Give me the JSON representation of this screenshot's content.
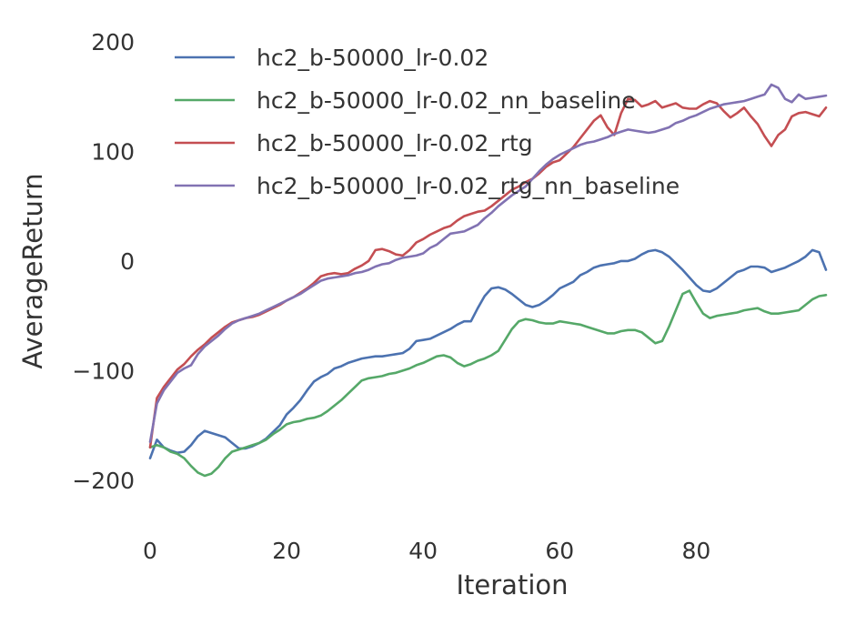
{
  "chart_data": {
    "type": "line",
    "title": "",
    "xlabel": "Iteration",
    "ylabel": "AverageReturn",
    "xlim": [
      0,
      99
    ],
    "ylim": [
      -240,
      210
    ],
    "xticks": [
      0,
      20,
      40,
      60,
      80
    ],
    "xtick_labels": [
      "0",
      "20",
      "40",
      "60",
      "80"
    ],
    "yticks": [
      200,
      100,
      0,
      -100,
      -200
    ],
    "ytick_labels": [
      "200",
      "100",
      "0",
      "−100",
      "−200"
    ],
    "grid": false,
    "legend_position": "upper-left",
    "x": [
      0,
      1,
      2,
      3,
      4,
      5,
      6,
      7,
      8,
      9,
      10,
      11,
      12,
      13,
      14,
      15,
      16,
      17,
      18,
      19,
      20,
      21,
      22,
      23,
      24,
      25,
      26,
      27,
      28,
      29,
      30,
      31,
      32,
      33,
      34,
      35,
      36,
      37,
      38,
      39,
      40,
      41,
      42,
      43,
      44,
      45,
      46,
      47,
      48,
      49,
      50,
      51,
      52,
      53,
      54,
      55,
      56,
      57,
      58,
      59,
      60,
      61,
      62,
      63,
      64,
      65,
      66,
      67,
      68,
      69,
      70,
      71,
      72,
      73,
      74,
      75,
      76,
      77,
      78,
      79,
      80,
      81,
      82,
      83,
      84,
      85,
      86,
      87,
      88,
      89,
      90,
      91,
      92,
      93,
      94,
      95,
      96,
      97,
      98,
      99
    ],
    "series": [
      {
        "name": "hc2_b-50000_lr-0.02",
        "color": "#4c72b0",
        "values": [
          -180,
          -163,
          -170,
          -173,
          -175,
          -174,
          -168,
          -160,
          -155,
          -157,
          -159,
          -161,
          -166,
          -171,
          -171,
          -169,
          -166,
          -162,
          -156,
          -150,
          -140,
          -134,
          -127,
          -118,
          -110,
          -106,
          -103,
          -98,
          -96,
          -93,
          -91,
          -89,
          -88,
          -87,
          -87,
          -86,
          -85,
          -84,
          -80,
          -73,
          -72,
          -71,
          -68,
          -65,
          -62,
          -58,
          -55,
          -55,
          -43,
          -32,
          -25,
          -24,
          -26,
          -30,
          -35,
          -40,
          -42,
          -40,
          -36,
          -31,
          -25,
          -22,
          -19,
          -13,
          -10,
          -6,
          -4,
          -3,
          -2,
          0,
          0,
          2,
          6,
          9,
          10,
          8,
          4,
          -2,
          -8,
          -15,
          -22,
          -27,
          -28,
          -25,
          -20,
          -15,
          -10,
          -8,
          -5,
          -5,
          -6,
          -10,
          -8,
          -6,
          -3,
          0,
          4,
          10,
          8,
          -8
        ]
      },
      {
        "name": "hc2_b-50000_lr-0.02_nn_baseline",
        "color": "#55a868",
        "values": [
          -170,
          -168,
          -170,
          -174,
          -176,
          -180,
          -187,
          -193,
          -196,
          -194,
          -188,
          -180,
          -174,
          -172,
          -170,
          -168,
          -166,
          -163,
          -158,
          -154,
          -149,
          -147,
          -146,
          -144,
          -143,
          -141,
          -137,
          -132,
          -127,
          -121,
          -115,
          -109,
          -107,
          -106,
          -105,
          -103,
          -102,
          -100,
          -98,
          -95,
          -93,
          -90,
          -87,
          -86,
          -88,
          -93,
          -96,
          -94,
          -91,
          -89,
          -86,
          -82,
          -72,
          -62,
          -55,
          -53,
          -54,
          -56,
          -57,
          -57,
          -55,
          -56,
          -57,
          -58,
          -60,
          -62,
          -64,
          -66,
          -66,
          -64,
          -63,
          -63,
          -65,
          -70,
          -75,
          -73,
          -60,
          -45,
          -30,
          -27,
          -38,
          -48,
          -52,
          -50,
          -49,
          -48,
          -47,
          -45,
          -44,
          -43,
          -46,
          -48,
          -48,
          -47,
          -46,
          -45,
          -40,
          -35,
          -32,
          -31
        ]
      },
      {
        "name": "hc2_b-50000_lr-0.02_rtg",
        "color": "#c44e52",
        "values": [
          -170,
          -125,
          -115,
          -107,
          -99,
          -94,
          -87,
          -81,
          -76,
          -70,
          -65,
          -60,
          -56,
          -54,
          -52,
          -51,
          -49,
          -46,
          -43,
          -40,
          -36,
          -33,
          -29,
          -25,
          -20,
          -14,
          -12,
          -11,
          -12,
          -11,
          -7,
          -4,
          0,
          10,
          11,
          9,
          6,
          5,
          10,
          17,
          20,
          24,
          27,
          30,
          32,
          37,
          41,
          43,
          45,
          46,
          50,
          55,
          60,
          65,
          68,
          72,
          75,
          80,
          86,
          90,
          92,
          98,
          104,
          112,
          120,
          128,
          133,
          122,
          115,
          135,
          148,
          147,
          141,
          143,
          146,
          140,
          142,
          144,
          140,
          139,
          139,
          143,
          146,
          144,
          137,
          131,
          135,
          140,
          132,
          125,
          114,
          105,
          115,
          120,
          132,
          135,
          136,
          134,
          132,
          140
        ]
      },
      {
        "name": "hc2_b-50000_lr-0.02_rtg_nn_baseline",
        "color": "#8172b2",
        "values": [
          -165,
          -130,
          -118,
          -110,
          -102,
          -98,
          -95,
          -85,
          -78,
          -73,
          -68,
          -62,
          -57,
          -54,
          -52,
          -50,
          -48,
          -45,
          -42,
          -39,
          -36,
          -33,
          -30,
          -26,
          -22,
          -18,
          -16,
          -15,
          -14,
          -13,
          -11,
          -10,
          -8,
          -5,
          -3,
          -2,
          1,
          3,
          4,
          5,
          7,
          12,
          15,
          20,
          25,
          26,
          27,
          30,
          33,
          39,
          44,
          50,
          55,
          60,
          64,
          68,
          75,
          82,
          88,
          93,
          97,
          100,
          103,
          106,
          108,
          109,
          111,
          113,
          116,
          118,
          120,
          119,
          118,
          117,
          118,
          120,
          122,
          126,
          128,
          131,
          133,
          136,
          139,
          141,
          143,
          144,
          145,
          146,
          148,
          150,
          152,
          161,
          158,
          148,
          145,
          152,
          148,
          149,
          150,
          151
        ]
      }
    ]
  }
}
